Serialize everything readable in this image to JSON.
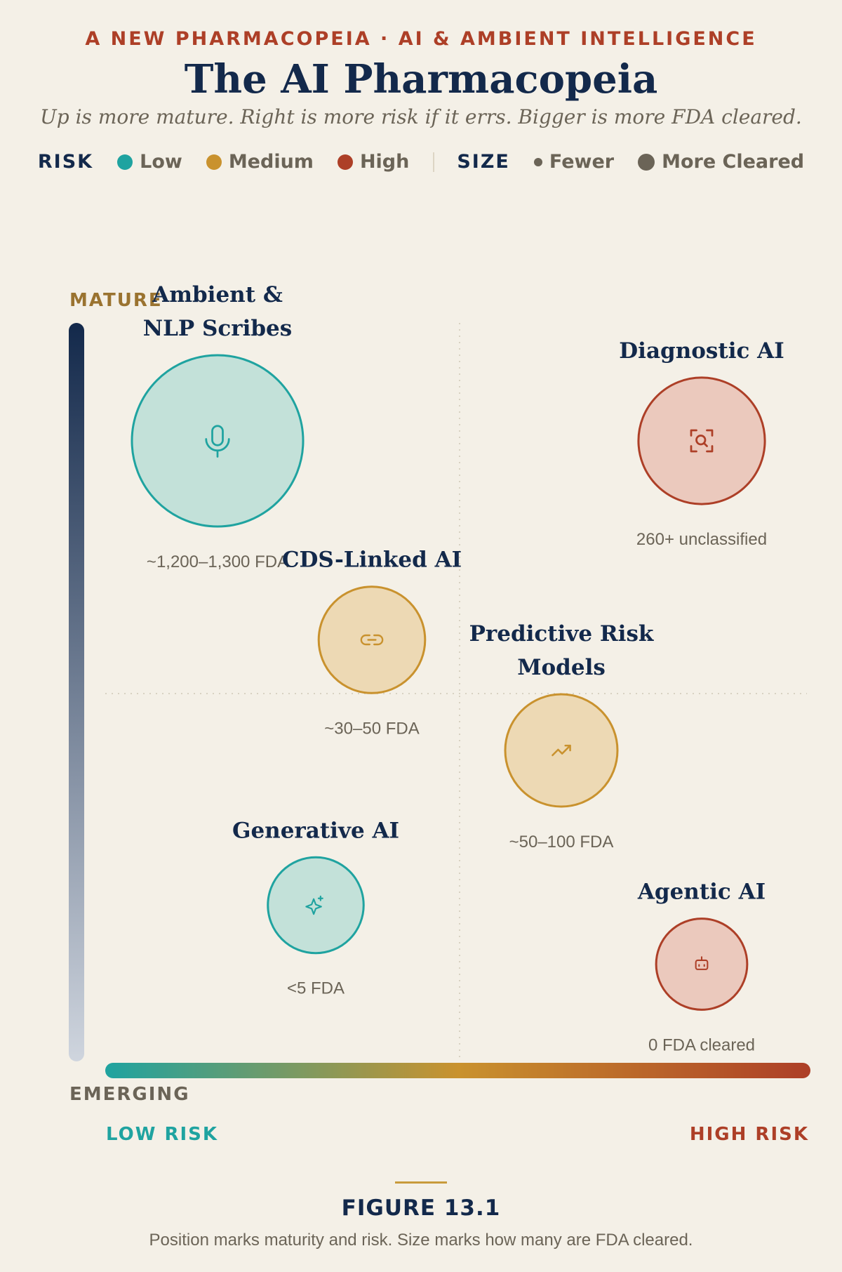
{
  "header": {
    "eyebrow": "A NEW PHARMACOPEIA · AI & AMBIENT INTELLIGENCE",
    "title": "The AI Pharmacopeia",
    "subtitle": "Up is more mature. Right is more risk if it errs. Bigger is more FDA cleared."
  },
  "legend": {
    "risk_key": "RISK",
    "risk_items": [
      {
        "label": "Low",
        "color": "#1fa3a0"
      },
      {
        "label": "Medium",
        "color": "#c9922e"
      },
      {
        "label": "High",
        "color": "#ad3f27"
      }
    ],
    "size_key": "SIZE",
    "size_items": [
      {
        "label": "Fewer",
        "level": "small"
      },
      {
        "label": "More Cleared",
        "level": "large"
      }
    ]
  },
  "colors": {
    "low": "#1fa3a0",
    "medium": "#c9922e",
    "high": "#ad3f27",
    "navy": "#13294b",
    "gold": "#9a7330",
    "muted": "#6b6457"
  },
  "chart_data": {
    "type": "scatter",
    "title": "The AI Pharmacopeia",
    "y_axis": {
      "top_label": "MATURE",
      "bottom_label": "EMERGING"
    },
    "x_axis": {
      "left_label": "LOW RISK",
      "right_label": "HIGH RISK"
    },
    "xlim": [
      0,
      1
    ],
    "ylim": [
      0,
      1
    ],
    "quadrant_lines": true,
    "points": [
      {
        "name": "Ambient & NLP Scribes",
        "risk": 0.16,
        "maturity": 0.84,
        "risk_level": "low",
        "size": 1.0,
        "note": "~1,200–1,300 FDA",
        "icon": "microphone-icon"
      },
      {
        "name": "Diagnostic AI",
        "risk": 0.85,
        "maturity": 0.84,
        "risk_level": "high",
        "size": 0.62,
        "note": "260+ unclassified",
        "icon": "scan-search-icon"
      },
      {
        "name": "CDS-Linked AI",
        "risk": 0.38,
        "maturity": 0.57,
        "risk_level": "medium",
        "size": 0.45,
        "note": "~30–50 FDA",
        "icon": "link-icon"
      },
      {
        "name": "Predictive Risk Models",
        "risk": 0.65,
        "maturity": 0.42,
        "risk_level": "medium",
        "size": 0.5,
        "note": "~50–100 FDA",
        "icon": "trending-up-icon"
      },
      {
        "name": "Generative AI",
        "risk": 0.3,
        "maturity": 0.21,
        "risk_level": "low",
        "size": 0.36,
        "note": "<5 FDA",
        "icon": "sparkles-icon"
      },
      {
        "name": "Agentic AI",
        "risk": 0.85,
        "maturity": 0.13,
        "risk_level": "high",
        "size": 0.32,
        "note": "0 FDA cleared",
        "icon": "robot-icon"
      }
    ]
  },
  "footer": {
    "figure_label": "FIGURE 13.1",
    "caption": "Position marks maturity and risk. Size marks how many are FDA cleared."
  }
}
